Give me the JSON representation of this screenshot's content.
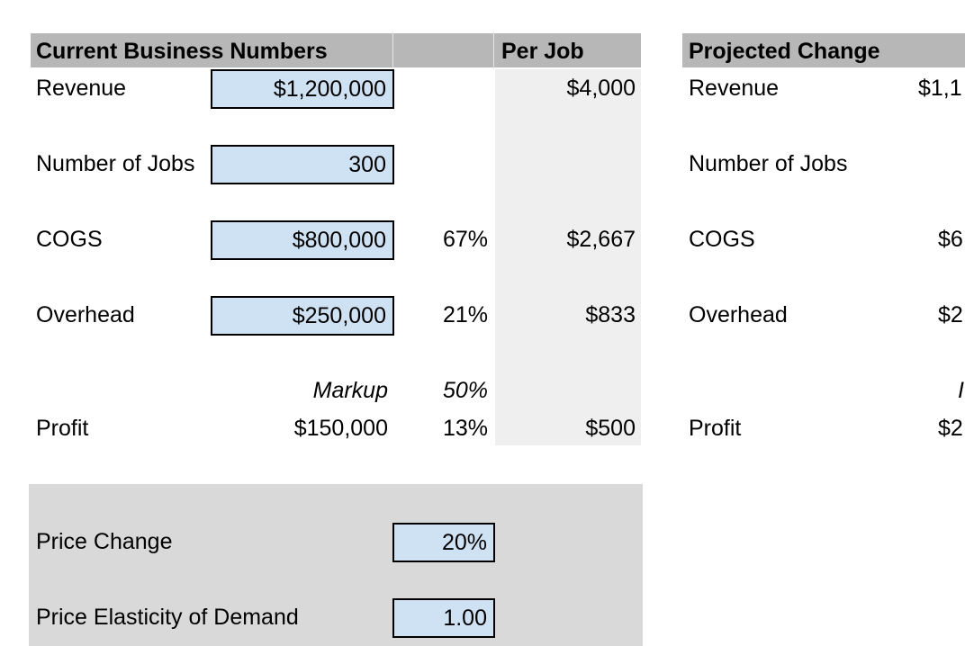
{
  "current": {
    "header": "Current Business Numbers",
    "per_job_header": "Per Job",
    "rows": {
      "revenue": {
        "label": "Revenue",
        "value": "$1,200,000",
        "per_job": "$4,000"
      },
      "jobs": {
        "label": "Number of Jobs",
        "value": "300"
      },
      "cogs": {
        "label": "COGS",
        "value": "$800,000",
        "pct": "67%",
        "per_job": "$2,667"
      },
      "overhead": {
        "label": "Overhead",
        "value": "$250,000",
        "pct": "21%",
        "per_job": "$833"
      },
      "markup": {
        "label": "Markup",
        "pct": "50%"
      },
      "profit": {
        "label": "Profit",
        "value": "$150,000",
        "pct": "13%",
        "per_job": "$500"
      }
    }
  },
  "projected": {
    "header": "Projected Change",
    "revenue": {
      "label": "Revenue",
      "value_partial": "$1,1"
    },
    "jobs": {
      "label": "Number of Jobs"
    },
    "cogs": {
      "label": "COGS",
      "value_partial": "$6"
    },
    "overhead": {
      "label": "Overhead",
      "value_partial": "$2"
    },
    "markup": {
      "value_partial": "I"
    },
    "profit": {
      "label": "Profit",
      "value_partial": "$2"
    }
  },
  "inputs": {
    "price_change": {
      "label": "Price Change",
      "value": "20%"
    },
    "elasticity": {
      "label": "Price Elasticity of Demand",
      "value": "1.00"
    }
  },
  "colors": {
    "header_gray": "#b7b7b7",
    "input_blue": "#cfe2f3",
    "per_job_gray": "#efefef",
    "panel_gray": "#d9d9d9"
  }
}
